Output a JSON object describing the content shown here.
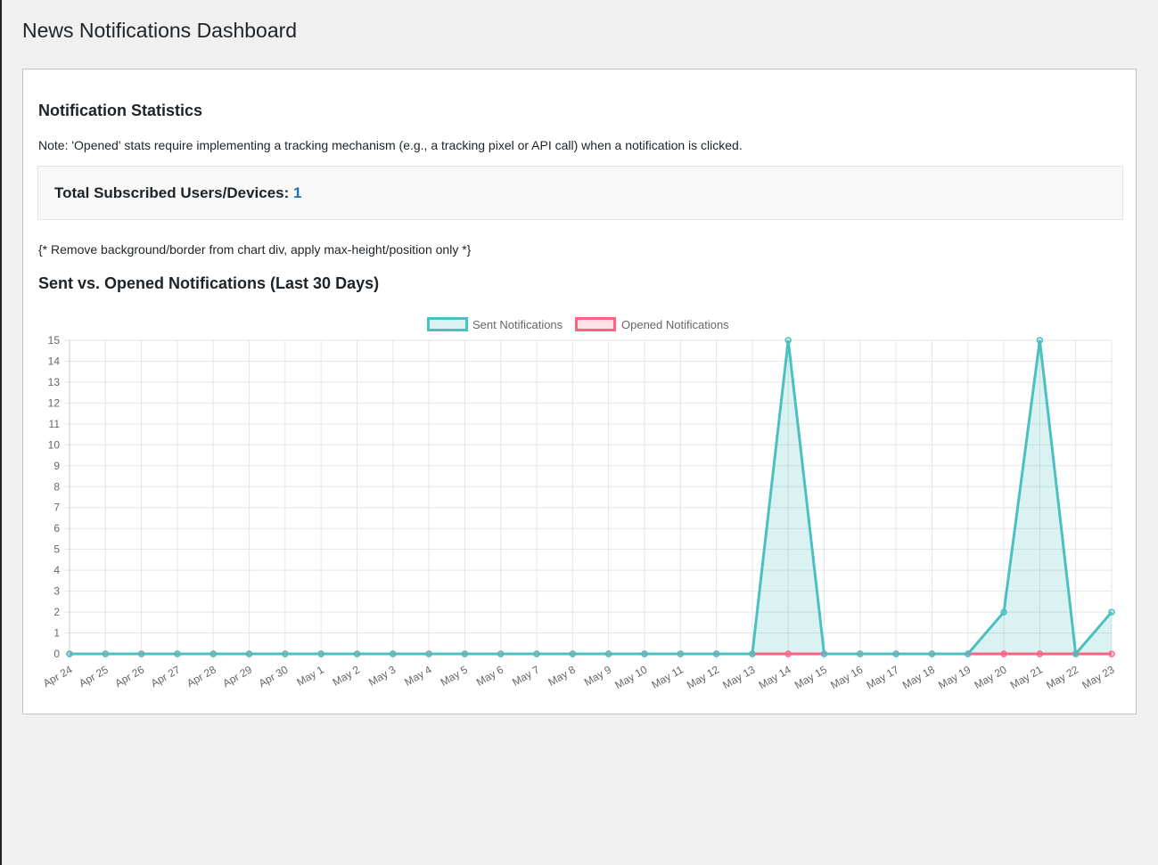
{
  "page": {
    "title": "News Notifications Dashboard"
  },
  "stats": {
    "section_title": "Notification Statistics",
    "note": "Note: 'Opened' stats require implementing a tracking mechanism (e.g., a tracking pixel or API call) when a notification is clicked.",
    "subscribed_label": "Total Subscribed Users/Devices: ",
    "subscribed_value": "1",
    "comment": "{* Remove background/border from chart div, apply max-height/position only *}",
    "chart_title": "Sent vs. Opened Notifications (Last 30 Days)"
  },
  "colors": {
    "sent": "#4bc0c0",
    "sent_fill": "rgba(75,192,192,0.2)",
    "opened": "#ff6384",
    "opened_fill": "rgba(255,99,132,0.2)",
    "grid": "#e5e5e5",
    "accent": "#2271b1"
  },
  "chart_data": {
    "type": "line",
    "title": "",
    "xlabel": "",
    "ylabel": "",
    "ylim": [
      0,
      15
    ],
    "y_ticks": [
      0,
      1,
      2,
      3,
      4,
      5,
      6,
      7,
      8,
      9,
      10,
      11,
      12,
      13,
      14,
      15
    ],
    "grid": true,
    "legend_position": "top",
    "categories": [
      "Apr 24",
      "Apr 25",
      "Apr 26",
      "Apr 27",
      "Apr 28",
      "Apr 29",
      "Apr 30",
      "May 1",
      "May 2",
      "May 3",
      "May 4",
      "May 5",
      "May 6",
      "May 7",
      "May 8",
      "May 9",
      "May 10",
      "May 11",
      "May 12",
      "May 13",
      "May 14",
      "May 15",
      "May 16",
      "May 17",
      "May 18",
      "May 19",
      "May 20",
      "May 21",
      "May 22",
      "May 23"
    ],
    "series": [
      {
        "name": "Sent Notifications",
        "values": [
          0,
          0,
          0,
          0,
          0,
          0,
          0,
          0,
          0,
          0,
          0,
          0,
          0,
          0,
          0,
          0,
          0,
          0,
          0,
          0,
          15,
          0,
          0,
          0,
          0,
          0,
          2,
          15,
          0,
          2
        ]
      },
      {
        "name": "Opened Notifications",
        "values": [
          0,
          0,
          0,
          0,
          0,
          0,
          0,
          0,
          0,
          0,
          0,
          0,
          0,
          0,
          0,
          0,
          0,
          0,
          0,
          0,
          0,
          0,
          0,
          0,
          0,
          0,
          0,
          0,
          0,
          0
        ]
      }
    ]
  }
}
